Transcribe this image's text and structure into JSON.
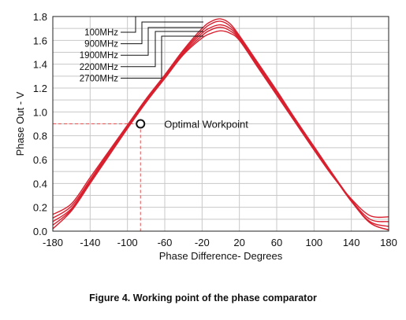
{
  "caption": "Figure 4. Working point of the phase comparator",
  "chart_data": {
    "type": "line",
    "xlabel": "Phase Difference- Degrees",
    "ylabel": "Phase Out - V",
    "xlim": [
      -180,
      180
    ],
    "ylim": [
      0.0,
      1.8
    ],
    "xticks": [
      "-180",
      "-140",
      "-100",
      "-60",
      "-20",
      "20",
      "60",
      "100",
      "140",
      "180"
    ],
    "xtick_values": [
      -180,
      -140,
      -100,
      -60,
      -20,
      20,
      60,
      100,
      140,
      180
    ],
    "yticks": [
      "0.0",
      "0.2",
      "0.4",
      "0.6",
      "0.8",
      "1.0",
      "1.2",
      "1.4",
      "1.6",
      "1.8"
    ],
    "ytick_values": [
      0.0,
      0.2,
      0.4,
      0.6,
      0.8,
      1.0,
      1.2,
      1.4,
      1.6,
      1.8
    ],
    "grid": true,
    "legend_position": "top-left",
    "line_color": "#d9202f",
    "x": [
      -180,
      -160,
      -140,
      -120,
      -100,
      -80,
      -60,
      -40,
      -20,
      -10,
      0,
      10,
      20,
      40,
      60,
      80,
      100,
      120,
      140,
      160,
      180
    ],
    "series": [
      {
        "name": "100MHz",
        "values": [
          0.14,
          0.23,
          0.45,
          0.67,
          0.89,
          1.11,
          1.31,
          1.52,
          1.7,
          1.76,
          1.78,
          1.74,
          1.64,
          1.41,
          1.18,
          0.94,
          0.71,
          0.48,
          0.26,
          0.07,
          0.01
        ]
      },
      {
        "name": "900MHz",
        "values": [
          0.11,
          0.21,
          0.43,
          0.66,
          0.88,
          1.1,
          1.3,
          1.51,
          1.68,
          1.74,
          1.76,
          1.72,
          1.63,
          1.4,
          1.17,
          0.93,
          0.7,
          0.47,
          0.25,
          0.07,
          0.01
        ]
      },
      {
        "name": "1900MHz",
        "values": [
          0.08,
          0.19,
          0.42,
          0.65,
          0.87,
          1.09,
          1.29,
          1.5,
          1.66,
          1.71,
          1.73,
          1.7,
          1.62,
          1.39,
          1.16,
          0.93,
          0.7,
          0.47,
          0.25,
          0.08,
          0.04
        ]
      },
      {
        "name": "2200MHz",
        "values": [
          0.05,
          0.18,
          0.41,
          0.64,
          0.87,
          1.09,
          1.29,
          1.49,
          1.64,
          1.69,
          1.71,
          1.68,
          1.61,
          1.38,
          1.15,
          0.92,
          0.69,
          0.47,
          0.26,
          0.1,
          0.08
        ]
      },
      {
        "name": "2700MHz",
        "values": [
          0.02,
          0.17,
          0.4,
          0.63,
          0.86,
          1.08,
          1.28,
          1.48,
          1.62,
          1.66,
          1.68,
          1.66,
          1.6,
          1.37,
          1.14,
          0.91,
          0.68,
          0.46,
          0.27,
          0.13,
          0.12
        ]
      }
    ],
    "annotations": [
      {
        "text": "Optimal Workpoint",
        "x": -86,
        "y": 0.9
      }
    ]
  }
}
